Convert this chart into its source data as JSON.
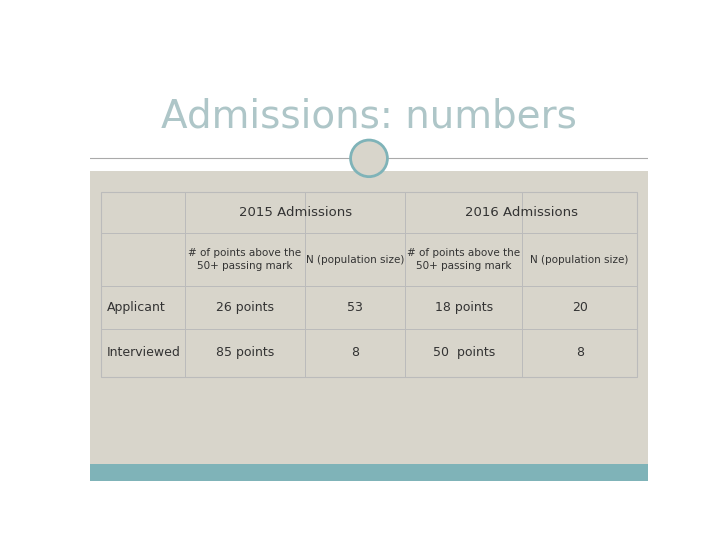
{
  "title": "Admissions: numbers",
  "title_color": "#aec6c8",
  "title_fontsize": 28,
  "bg_top": "#ffffff",
  "bg_bottom": "#d8d5cb",
  "accent_bar_color": "#7fb3b8",
  "circle_color": "#7fb3b8",
  "divider_color": "#aaaaaa",
  "table_border_color": "#bbbbbb",
  "header1": "2015 Admissions",
  "header2": "2016 Admissions",
  "col_headers": [
    "# of points above the\n50+ passing mark",
    "N (population size)",
    "# of points above the\n50+ passing mark",
    "N (population size)"
  ],
  "rows": [
    [
      "Applicant",
      "26 points",
      "53",
      "18 points",
      "20"
    ],
    [
      "Interviewed",
      "85 points",
      "8",
      "50  points",
      "8"
    ]
  ],
  "cell_text_color": "#333333",
  "header_text_color": "#333333",
  "font_family": "sans-serif"
}
